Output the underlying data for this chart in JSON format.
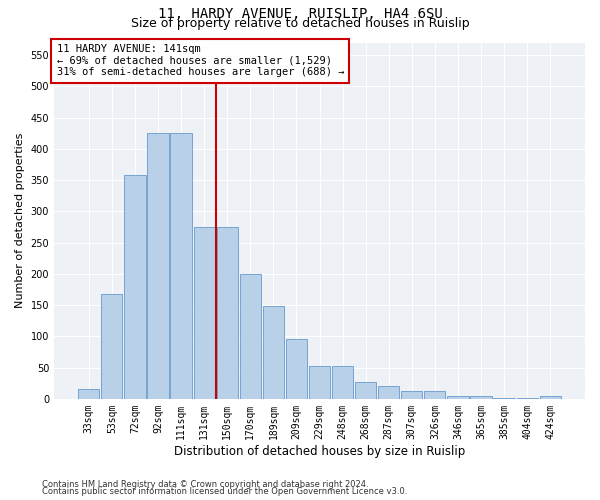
{
  "title_line1": "11, HARDY AVENUE, RUISLIP, HA4 6SU",
  "title_line2": "Size of property relative to detached houses in Ruislip",
  "xlabel": "Distribution of detached houses by size in Ruislip",
  "ylabel": "Number of detached properties",
  "categories": [
    "33sqm",
    "53sqm",
    "72sqm",
    "92sqm",
    "111sqm",
    "131sqm",
    "150sqm",
    "170sqm",
    "189sqm",
    "209sqm",
    "229sqm",
    "248sqm",
    "268sqm",
    "287sqm",
    "307sqm",
    "326sqm",
    "346sqm",
    "365sqm",
    "385sqm",
    "404sqm",
    "424sqm"
  ],
  "values": [
    15,
    168,
    358,
    425,
    425,
    275,
    275,
    200,
    148,
    95,
    53,
    53,
    27,
    20,
    13,
    13,
    5,
    4,
    2,
    1,
    5
  ],
  "bar_color": "#b8d0e8",
  "bar_edge_color": "#6699cc",
  "vline_x": 5.5,
  "vline_color": "#cc0000",
  "annotation_text": "11 HARDY AVENUE: 141sqm\n← 69% of detached houses are smaller (1,529)\n31% of semi-detached houses are larger (688) →",
  "annotation_box_color": "#ffffff",
  "annotation_box_edge": "#cc0000",
  "ylim": [
    0,
    570
  ],
  "yticks": [
    0,
    50,
    100,
    150,
    200,
    250,
    300,
    350,
    400,
    450,
    500,
    550
  ],
  "bg_color": "#eef2f7",
  "footer_line1": "Contains HM Land Registry data © Crown copyright and database right 2024.",
  "footer_line2": "Contains public sector information licensed under the Open Government Licence v3.0.",
  "title_fontsize": 10,
  "subtitle_fontsize": 9,
  "tick_fontsize": 7,
  "ylabel_fontsize": 8,
  "xlabel_fontsize": 8.5
}
